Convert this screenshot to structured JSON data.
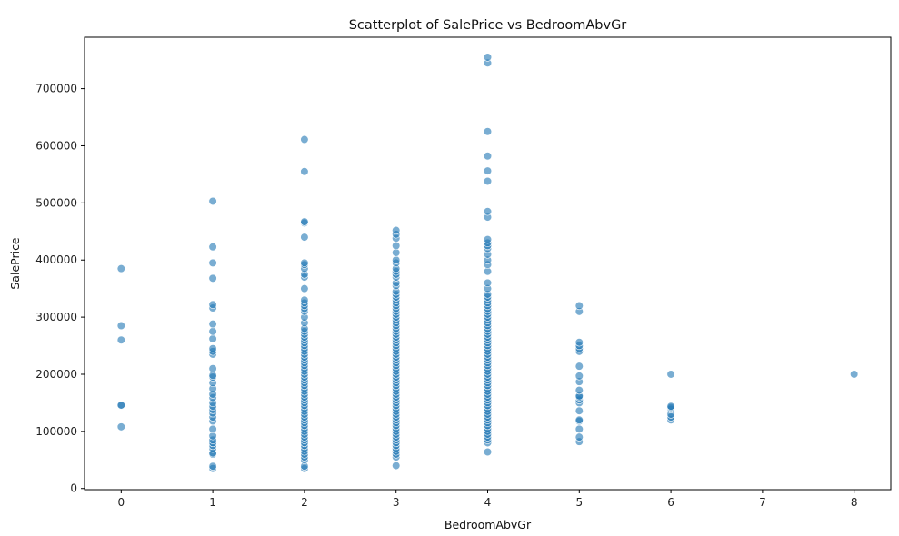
{
  "chart_data": {
    "type": "scatter",
    "title": "Scatterplot of SalePrice vs BedroomAbvGr",
    "xlabel": "BedroomAbvGr",
    "ylabel": "SalePrice",
    "xlim": [
      -0.4,
      8.4
    ],
    "ylim": [
      -2000,
      790000
    ],
    "xticks": [
      0,
      1,
      2,
      3,
      4,
      5,
      6,
      7,
      8
    ],
    "yticks": [
      0,
      100000,
      200000,
      300000,
      400000,
      500000,
      600000,
      700000
    ],
    "grid": false,
    "point_color": "#1f77b4",
    "point_opacity": 0.6,
    "points": [
      [
        0,
        108000
      ],
      [
        0,
        145000
      ],
      [
        0,
        146000
      ],
      [
        0,
        260000
      ],
      [
        0,
        285000
      ],
      [
        0,
        385000
      ],
      [
        1,
        35000
      ],
      [
        1,
        39000
      ],
      [
        1,
        60000
      ],
      [
        1,
        62000
      ],
      [
        1,
        70000
      ],
      [
        1,
        75000
      ],
      [
        1,
        80000
      ],
      [
        1,
        85000
      ],
      [
        1,
        92000
      ],
      [
        1,
        104000
      ],
      [
        1,
        118000
      ],
      [
        1,
        125000
      ],
      [
        1,
        132000
      ],
      [
        1,
        138000
      ],
      [
        1,
        144000
      ],
      [
        1,
        150000
      ],
      [
        1,
        159000
      ],
      [
        1,
        165000
      ],
      [
        1,
        175000
      ],
      [
        1,
        185000
      ],
      [
        1,
        195000
      ],
      [
        1,
        198000
      ],
      [
        1,
        210000
      ],
      [
        1,
        235000
      ],
      [
        1,
        240000
      ],
      [
        1,
        245000
      ],
      [
        1,
        262000
      ],
      [
        1,
        275000
      ],
      [
        1,
        288000
      ],
      [
        1,
        316000
      ],
      [
        1,
        322000
      ],
      [
        1,
        368000
      ],
      [
        1,
        395000
      ],
      [
        1,
        423000
      ],
      [
        1,
        503000
      ],
      [
        2,
        35000
      ],
      [
        2,
        39000
      ],
      [
        2,
        50000
      ],
      [
        2,
        55000
      ],
      [
        2,
        60000
      ],
      [
        2,
        65000
      ],
      [
        2,
        70000
      ],
      [
        2,
        75000
      ],
      [
        2,
        80000
      ],
      [
        2,
        85000
      ],
      [
        2,
        90000
      ],
      [
        2,
        95000
      ],
      [
        2,
        100000
      ],
      [
        2,
        105000
      ],
      [
        2,
        110000
      ],
      [
        2,
        115000
      ],
      [
        2,
        120000
      ],
      [
        2,
        125000
      ],
      [
        2,
        130000
      ],
      [
        2,
        135000
      ],
      [
        2,
        140000
      ],
      [
        2,
        145000
      ],
      [
        2,
        150000
      ],
      [
        2,
        155000
      ],
      [
        2,
        160000
      ],
      [
        2,
        165000
      ],
      [
        2,
        170000
      ],
      [
        2,
        175000
      ],
      [
        2,
        180000
      ],
      [
        2,
        185000
      ],
      [
        2,
        190000
      ],
      [
        2,
        195000
      ],
      [
        2,
        200000
      ],
      [
        2,
        205000
      ],
      [
        2,
        210000
      ],
      [
        2,
        215000
      ],
      [
        2,
        220000
      ],
      [
        2,
        225000
      ],
      [
        2,
        230000
      ],
      [
        2,
        235000
      ],
      [
        2,
        240000
      ],
      [
        2,
        245000
      ],
      [
        2,
        250000
      ],
      [
        2,
        255000
      ],
      [
        2,
        260000
      ],
      [
        2,
        265000
      ],
      [
        2,
        270000
      ],
      [
        2,
        275000
      ],
      [
        2,
        280000
      ],
      [
        2,
        290000
      ],
      [
        2,
        300000
      ],
      [
        2,
        310000
      ],
      [
        2,
        315000
      ],
      [
        2,
        320000
      ],
      [
        2,
        325000
      ],
      [
        2,
        330000
      ],
      [
        2,
        350000
      ],
      [
        2,
        370000
      ],
      [
        2,
        375000
      ],
      [
        2,
        385000
      ],
      [
        2,
        392000
      ],
      [
        2,
        395000
      ],
      [
        2,
        440000
      ],
      [
        2,
        465000
      ],
      [
        2,
        467000
      ],
      [
        2,
        555000
      ],
      [
        2,
        611000
      ],
      [
        3,
        40000
      ],
      [
        3,
        55000
      ],
      [
        3,
        60000
      ],
      [
        3,
        65000
      ],
      [
        3,
        70000
      ],
      [
        3,
        75000
      ],
      [
        3,
        80000
      ],
      [
        3,
        85000
      ],
      [
        3,
        90000
      ],
      [
        3,
        95000
      ],
      [
        3,
        100000
      ],
      [
        3,
        105000
      ],
      [
        3,
        110000
      ],
      [
        3,
        115000
      ],
      [
        3,
        120000
      ],
      [
        3,
        125000
      ],
      [
        3,
        130000
      ],
      [
        3,
        135000
      ],
      [
        3,
        140000
      ],
      [
        3,
        145000
      ],
      [
        3,
        150000
      ],
      [
        3,
        155000
      ],
      [
        3,
        160000
      ],
      [
        3,
        165000
      ],
      [
        3,
        170000
      ],
      [
        3,
        175000
      ],
      [
        3,
        180000
      ],
      [
        3,
        185000
      ],
      [
        3,
        190000
      ],
      [
        3,
        195000
      ],
      [
        3,
        200000
      ],
      [
        3,
        205000
      ],
      [
        3,
        210000
      ],
      [
        3,
        215000
      ],
      [
        3,
        220000
      ],
      [
        3,
        225000
      ],
      [
        3,
        230000
      ],
      [
        3,
        235000
      ],
      [
        3,
        240000
      ],
      [
        3,
        245000
      ],
      [
        3,
        250000
      ],
      [
        3,
        255000
      ],
      [
        3,
        260000
      ],
      [
        3,
        265000
      ],
      [
        3,
        270000
      ],
      [
        3,
        275000
      ],
      [
        3,
        280000
      ],
      [
        3,
        285000
      ],
      [
        3,
        290000
      ],
      [
        3,
        295000
      ],
      [
        3,
        300000
      ],
      [
        3,
        305000
      ],
      [
        3,
        310000
      ],
      [
        3,
        315000
      ],
      [
        3,
        320000
      ],
      [
        3,
        325000
      ],
      [
        3,
        330000
      ],
      [
        3,
        335000
      ],
      [
        3,
        340000
      ],
      [
        3,
        345000
      ],
      [
        3,
        355000
      ],
      [
        3,
        360000
      ],
      [
        3,
        370000
      ],
      [
        3,
        375000
      ],
      [
        3,
        380000
      ],
      [
        3,
        385000
      ],
      [
        3,
        395000
      ],
      [
        3,
        400000
      ],
      [
        3,
        413000
      ],
      [
        3,
        425000
      ],
      [
        3,
        438000
      ],
      [
        3,
        445000
      ],
      [
        3,
        452000
      ],
      [
        4,
        64000
      ],
      [
        4,
        80000
      ],
      [
        4,
        85000
      ],
      [
        4,
        90000
      ],
      [
        4,
        95000
      ],
      [
        4,
        100000
      ],
      [
        4,
        105000
      ],
      [
        4,
        110000
      ],
      [
        4,
        115000
      ],
      [
        4,
        120000
      ],
      [
        4,
        125000
      ],
      [
        4,
        130000
      ],
      [
        4,
        135000
      ],
      [
        4,
        140000
      ],
      [
        4,
        145000
      ],
      [
        4,
        150000
      ],
      [
        4,
        155000
      ],
      [
        4,
        160000
      ],
      [
        4,
        165000
      ],
      [
        4,
        170000
      ],
      [
        4,
        175000
      ],
      [
        4,
        180000
      ],
      [
        4,
        185000
      ],
      [
        4,
        190000
      ],
      [
        4,
        195000
      ],
      [
        4,
        200000
      ],
      [
        4,
        205000
      ],
      [
        4,
        210000
      ],
      [
        4,
        215000
      ],
      [
        4,
        220000
      ],
      [
        4,
        225000
      ],
      [
        4,
        230000
      ],
      [
        4,
        235000
      ],
      [
        4,
        240000
      ],
      [
        4,
        245000
      ],
      [
        4,
        250000
      ],
      [
        4,
        255000
      ],
      [
        4,
        260000
      ],
      [
        4,
        265000
      ],
      [
        4,
        270000
      ],
      [
        4,
        275000
      ],
      [
        4,
        280000
      ],
      [
        4,
        285000
      ],
      [
        4,
        290000
      ],
      [
        4,
        295000
      ],
      [
        4,
        300000
      ],
      [
        4,
        305000
      ],
      [
        4,
        310000
      ],
      [
        4,
        315000
      ],
      [
        4,
        320000
      ],
      [
        4,
        325000
      ],
      [
        4,
        330000
      ],
      [
        4,
        335000
      ],
      [
        4,
        340000
      ],
      [
        4,
        350000
      ],
      [
        4,
        360000
      ],
      [
        4,
        380000
      ],
      [
        4,
        392000
      ],
      [
        4,
        400000
      ],
      [
        4,
        410000
      ],
      [
        4,
        420000
      ],
      [
        4,
        425000
      ],
      [
        4,
        430000
      ],
      [
        4,
        436000
      ],
      [
        4,
        475000
      ],
      [
        4,
        485000
      ],
      [
        4,
        538000
      ],
      [
        4,
        556000
      ],
      [
        4,
        582000
      ],
      [
        4,
        625000
      ],
      [
        4,
        745000
      ],
      [
        4,
        755000
      ],
      [
        5,
        82000
      ],
      [
        5,
        90000
      ],
      [
        5,
        104000
      ],
      [
        5,
        118000
      ],
      [
        5,
        120000
      ],
      [
        5,
        136000
      ],
      [
        5,
        150000
      ],
      [
        5,
        155000
      ],
      [
        5,
        160000
      ],
      [
        5,
        162000
      ],
      [
        5,
        172000
      ],
      [
        5,
        187000
      ],
      [
        5,
        197000
      ],
      [
        5,
        214000
      ],
      [
        5,
        240000
      ],
      [
        5,
        245000
      ],
      [
        5,
        250000
      ],
      [
        5,
        256000
      ],
      [
        5,
        310000
      ],
      [
        5,
        320000
      ],
      [
        6,
        120000
      ],
      [
        6,
        125000
      ],
      [
        6,
        130000
      ],
      [
        6,
        139000
      ],
      [
        6,
        142000
      ],
      [
        6,
        144000
      ],
      [
        6,
        200000
      ],
      [
        8,
        200000
      ]
    ]
  }
}
